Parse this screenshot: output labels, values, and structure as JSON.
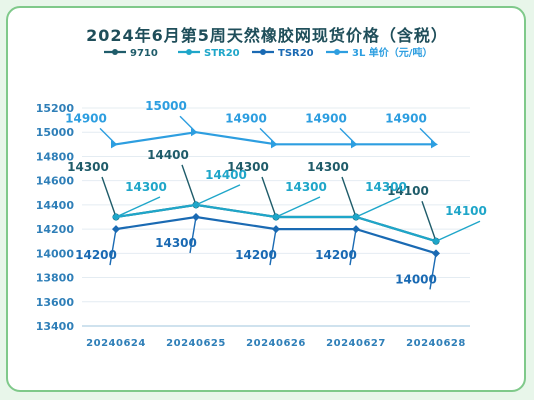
{
  "title": "2024年6月第5周天然橡胶网现货价格（含税）",
  "chart_data": {
    "type": "line",
    "title": "2024年6月第5周天然橡胶网现货价格（含税）",
    "categories": [
      "20240624",
      "20240625",
      "20240626",
      "20240627",
      "20240628"
    ],
    "ylim": [
      13400,
      15200
    ],
    "yticks": [
      13400,
      13600,
      13800,
      14000,
      14200,
      14400,
      14600,
      14800,
      15000,
      15200
    ],
    "grid": true,
    "legend": "top",
    "series": [
      {
        "name": "9710",
        "color": "#1f5c6a",
        "values": [
          14300,
          14400,
          14300,
          14300,
          14100
        ]
      },
      {
        "name": "STR20",
        "color": "#1fa6c9",
        "values": [
          14300,
          14400,
          14300,
          14300,
          14100
        ]
      },
      {
        "name": "TSR20",
        "color": "#1a6ab3",
        "values": [
          14200,
          14300,
          14200,
          14200,
          14000
        ]
      },
      {
        "name": "3L 单价（元/吨）",
        "color": "#2d9ee0",
        "values": [
          14900,
          15000,
          14900,
          14900,
          14900
        ]
      }
    ]
  }
}
